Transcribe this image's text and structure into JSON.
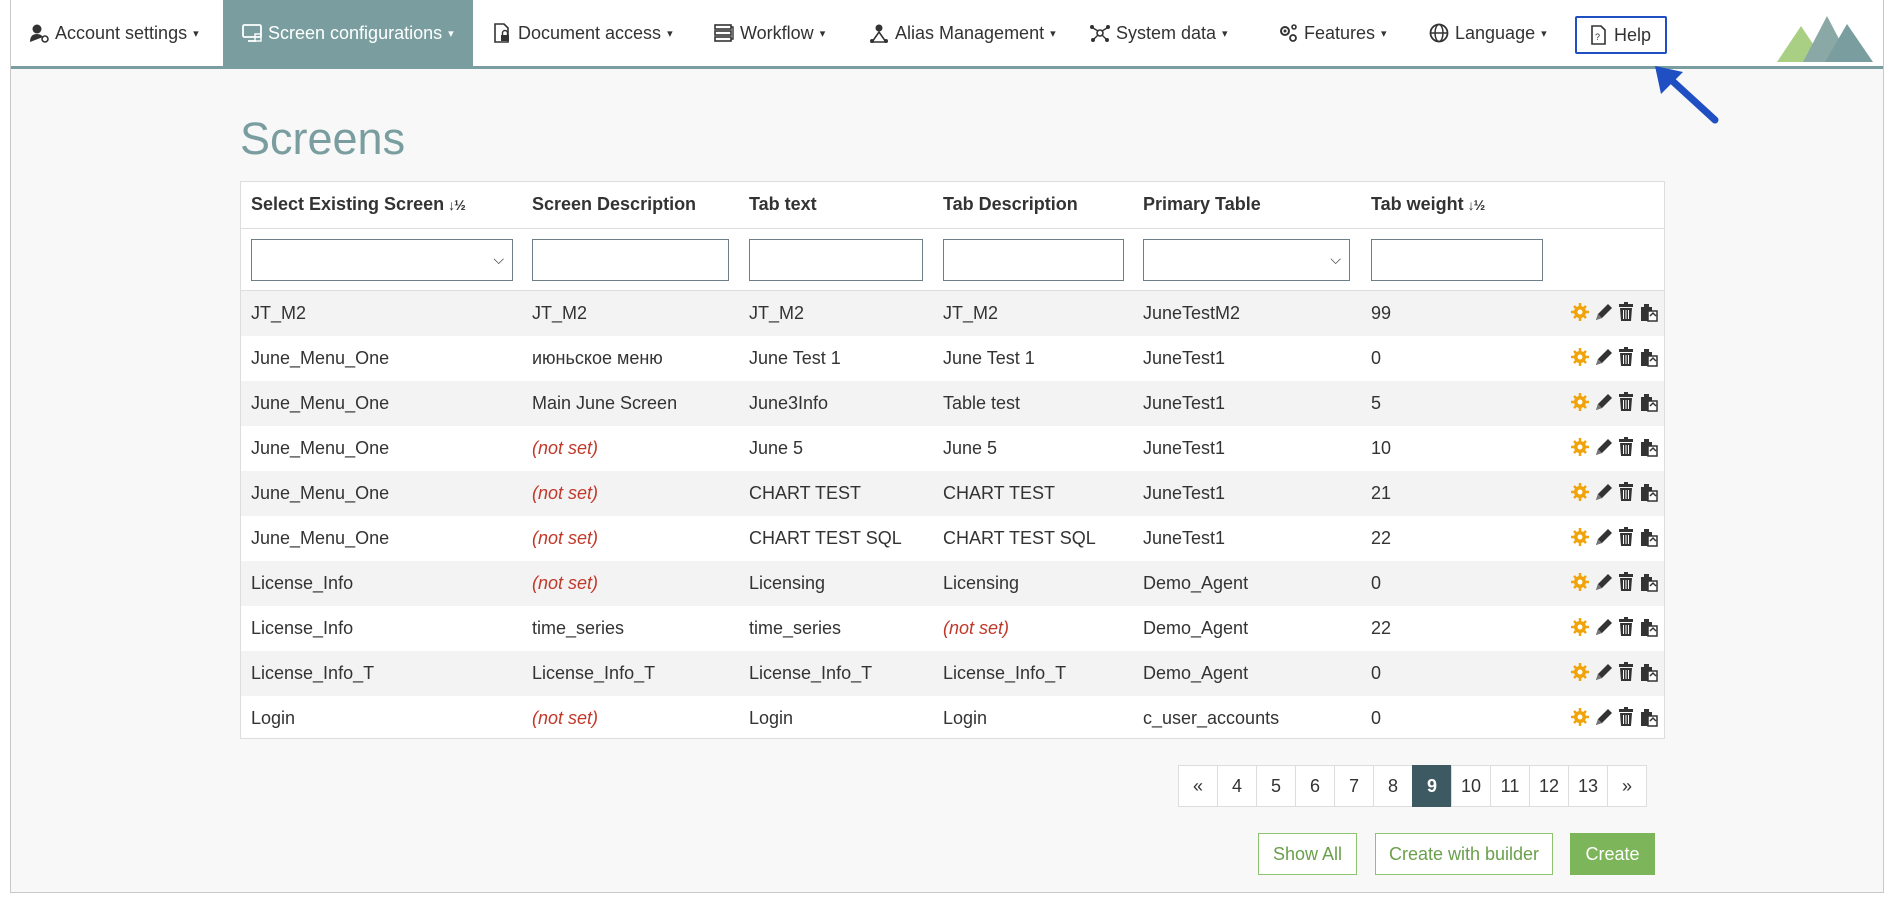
{
  "nav": {
    "items": [
      {
        "label": "Account settings",
        "icon": "user-gear-icon"
      },
      {
        "label": "Screen configurations",
        "icon": "monitor-icon",
        "active": true
      },
      {
        "label": "Document access",
        "icon": "document-lock-icon"
      },
      {
        "label": "Workflow",
        "icon": "workflow-icon"
      },
      {
        "label": "Alias Management",
        "icon": "alias-icon"
      },
      {
        "label": "System data",
        "icon": "network-icon"
      },
      {
        "label": "Features",
        "icon": "gears-icon"
      },
      {
        "label": "Language",
        "icon": "globe-icon"
      }
    ],
    "help_label": "Help",
    "accent": "#7a9e9f"
  },
  "page": {
    "title": "Screens"
  },
  "table": {
    "headers": {
      "screen": "Select Existing Screen",
      "description": "Screen Description",
      "tab_text": "Tab text",
      "tab_description": "Tab Description",
      "primary_table": "Primary Table",
      "tab_weight": "Tab weight"
    },
    "rows": [
      {
        "screen": "JT_M2",
        "description": "JT_M2",
        "tab_text": "JT_M2",
        "tab_description": "JT_M2",
        "primary_table": "JuneTestM2",
        "tab_weight": "99"
      },
      {
        "screen": "June_Menu_One",
        "description": "июньское меню",
        "tab_text": "June Test 1",
        "tab_description": "June Test 1",
        "primary_table": "JuneTest1",
        "tab_weight": "0"
      },
      {
        "screen": "June_Menu_One",
        "description": "Main June Screen",
        "tab_text": "June3Info",
        "tab_description": "Table test",
        "primary_table": "JuneTest1",
        "tab_weight": "5"
      },
      {
        "screen": "June_Menu_One",
        "description": "(not set)",
        "tab_text": "June 5",
        "tab_description": "June 5",
        "primary_table": "JuneTest1",
        "tab_weight": "10"
      },
      {
        "screen": "June_Menu_One",
        "description": "(not set)",
        "tab_text": "CHART TEST",
        "tab_description": "CHART TEST",
        "primary_table": "JuneTest1",
        "tab_weight": "21"
      },
      {
        "screen": "June_Menu_One",
        "description": "(not set)",
        "tab_text": "CHART TEST SQL",
        "tab_description": "CHART TEST SQL",
        "primary_table": "JuneTest1",
        "tab_weight": "22"
      },
      {
        "screen": "License_Info",
        "description": "(not set)",
        "tab_text": "Licensing",
        "tab_description": "Licensing",
        "primary_table": "Demo_Agent",
        "tab_weight": "0"
      },
      {
        "screen": "License_Info",
        "description": "time_series",
        "tab_text": "time_series",
        "tab_description": "(not set)",
        "primary_table": "Demo_Agent",
        "tab_weight": "22"
      },
      {
        "screen": "License_Info_T",
        "description": "License_Info_T",
        "tab_text": "License_Info_T",
        "tab_description": "License_Info_T",
        "primary_table": "Demo_Agent",
        "tab_weight": "0"
      },
      {
        "screen": "Login",
        "description": "(not set)",
        "tab_text": "Login",
        "tab_description": "Login",
        "primary_table": "c_user_accounts",
        "tab_weight": "0"
      }
    ],
    "not_set": "(not set)"
  },
  "pagination": {
    "prev": "«",
    "pages": [
      "4",
      "5",
      "6",
      "7",
      "8",
      "9",
      "10",
      "11",
      "12",
      "13"
    ],
    "current": "9",
    "next": "»"
  },
  "buttons": {
    "show_all": "Show All",
    "create_with_builder": "Create with builder",
    "create": "Create"
  }
}
